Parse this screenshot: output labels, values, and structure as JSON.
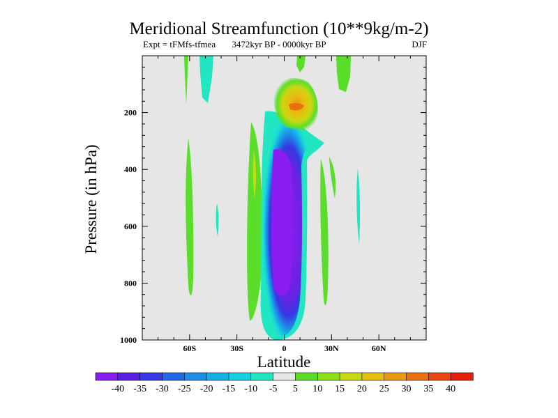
{
  "chart_data": {
    "type": "filled-contour",
    "title": "Meridional Streamfunction (10**9kg/m-2)",
    "subtitle_left": "Expt = tFMfs-tfmea",
    "subtitle_center": "3472kyr BP - 0000kyr BP",
    "subtitle_right": "DJF",
    "xlabel": "Latitude",
    "ylabel": "Pressure (in hPa)",
    "xlim": [
      -90,
      90
    ],
    "ylim": [
      1000,
      0
    ],
    "x_ticks": [
      {
        "value": -60,
        "label": "60S"
      },
      {
        "value": -30,
        "label": "30S"
      },
      {
        "value": 0,
        "label": "0"
      },
      {
        "value": 30,
        "label": "30N"
      },
      {
        "value": 60,
        "label": "60N"
      }
    ],
    "y_ticks": [
      {
        "value": 200,
        "label": "200"
      },
      {
        "value": 400,
        "label": "400"
      },
      {
        "value": 600,
        "label": "600"
      },
      {
        "value": 800,
        "label": "800"
      },
      {
        "value": 1000,
        "label": "1000"
      }
    ],
    "colorbar": {
      "levels": [
        "-40",
        "-35",
        "-30",
        "-25",
        "-20",
        "-15",
        "-10",
        "-5",
        "5",
        "10",
        "15",
        "20",
        "25",
        "30",
        "35",
        "40"
      ],
      "colors": [
        "#8a1df0",
        "#5a20e0",
        "#3838e2",
        "#2468e6",
        "#1c8ee8",
        "#14b0e6",
        "#18cfe0",
        "#20e6c2",
        "#e6e6e6",
        "#5ade2a",
        "#8ae014",
        "#c8d812",
        "#e6c010",
        "#e89a10",
        "#e87010",
        "#e64810",
        "#e22008"
      ]
    },
    "features": [
      {
        "name": "equatorial-cell",
        "sign": "negative",
        "min_value": -40,
        "lat_range": [
          -12,
          8
        ],
        "pressure_range": [
          230,
          990
        ]
      },
      {
        "name": "upper-cell",
        "sign": "positive",
        "max_value": 30,
        "lat_range": [
          -4,
          14
        ],
        "pressure_range": [
          130,
          230
        ]
      },
      {
        "name": "subtropical-north-band",
        "sign": "positive",
        "max_value": 10,
        "lat_range": [
          23,
          32
        ],
        "pressure_range": [
          250,
          900
        ]
      },
      {
        "name": "subtropical-south-band",
        "sign": "positive",
        "max_value": 15,
        "lat_range": [
          -22,
          -17
        ],
        "pressure_range": [
          280,
          940
        ]
      },
      {
        "name": "southern-midlat-band",
        "sign": "positive",
        "max_value": 10,
        "lat_range": [
          -63,
          -59
        ],
        "pressure_range": [
          290,
          870
        ]
      }
    ]
  }
}
